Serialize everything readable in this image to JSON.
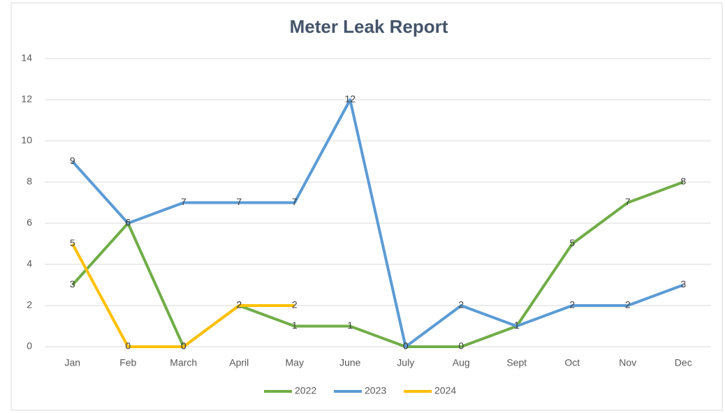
{
  "chart_data": {
    "type": "line",
    "title": "Meter Leak Report",
    "categories": [
      "Jan",
      "Feb",
      "March",
      "April",
      "May",
      "June",
      "July",
      "Aug",
      "Sept",
      "Oct",
      "Nov",
      "Dec"
    ],
    "series": [
      {
        "name": "2022",
        "color": "#70ad47",
        "values": [
          3,
          6,
          0,
          2,
          1,
          1,
          0,
          0,
          1,
          5,
          7,
          8
        ]
      },
      {
        "name": "2023",
        "color": "#5b9bd5",
        "values": [
          9,
          6,
          7,
          7,
          7,
          12,
          0,
          2,
          1,
          2,
          2,
          3
        ]
      },
      {
        "name": "2024",
        "color": "#ffc000",
        "values": [
          5,
          0,
          0,
          2,
          2,
          null,
          null,
          null,
          null,
          null,
          null,
          null
        ]
      }
    ],
    "ylim": [
      0,
      14
    ],
    "yticks": [
      0,
      2,
      4,
      6,
      8,
      10,
      12,
      14
    ],
    "grid": true,
    "legend": "bottom"
  }
}
